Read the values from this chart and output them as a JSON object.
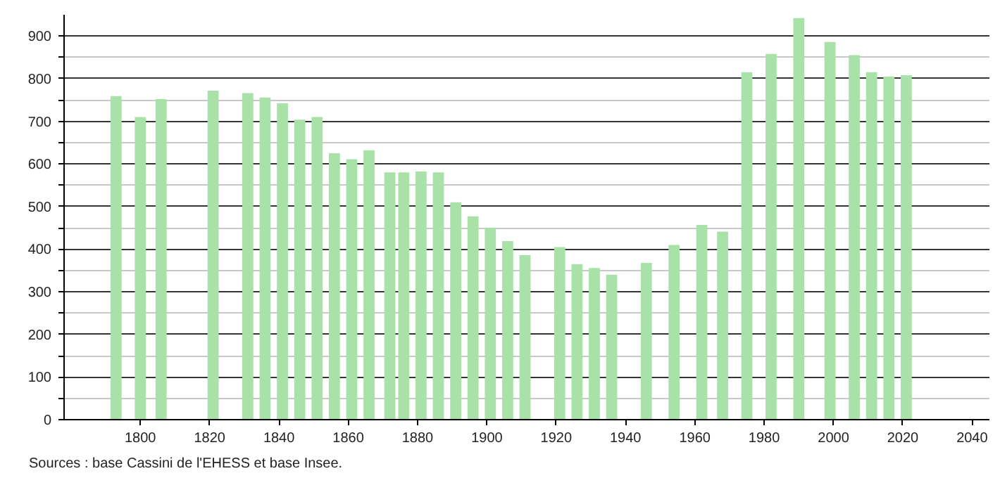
{
  "chart_data": {
    "type": "bar",
    "x": [
      1793,
      1800,
      1806,
      1821,
      1831,
      1836,
      1841,
      1846,
      1851,
      1856,
      1861,
      1866,
      1872,
      1876,
      1881,
      1886,
      1891,
      1896,
      1901,
      1906,
      1911,
      1921,
      1926,
      1931,
      1936,
      1946,
      1954,
      1962,
      1968,
      1975,
      1982,
      1990,
      1999,
      2006,
      2011,
      2016,
      2021
    ],
    "values": [
      759,
      710,
      752,
      772,
      766,
      756,
      742,
      704,
      710,
      625,
      611,
      632,
      580,
      580,
      582,
      580,
      510,
      477,
      450,
      419,
      386,
      405,
      365,
      356,
      340,
      368,
      410,
      457,
      441,
      815,
      858,
      942,
      886,
      855,
      815,
      805,
      808
    ],
    "color": "#a8e2a8",
    "xlim": [
      1778,
      2045
    ],
    "xticks": [
      1800,
      1820,
      1840,
      1860,
      1880,
      1900,
      1920,
      1940,
      1960,
      1980,
      2000,
      2020,
      2040
    ],
    "ylim": [
      0,
      950
    ],
    "yticks": [
      0,
      {
        "value": 50,
        "label": null
      },
      100,
      {
        "value": 150,
        "label": null
      },
      200,
      {
        "value": 250,
        "label": null
      },
      300,
      {
        "value": 350,
        "label": null
      },
      400,
      {
        "value": 450,
        "label": null
      },
      500,
      {
        "value": 550,
        "label": null
      },
      600,
      {
        "value": 650,
        "label": null
      },
      700,
      {
        "value": 750,
        "label": null
      },
      800,
      {
        "value": 850,
        "label": null
      },
      900
    ],
    "grid": "y",
    "annotations": [
      "Sources : base Cassini de l'EHESS et base Insee."
    ]
  }
}
